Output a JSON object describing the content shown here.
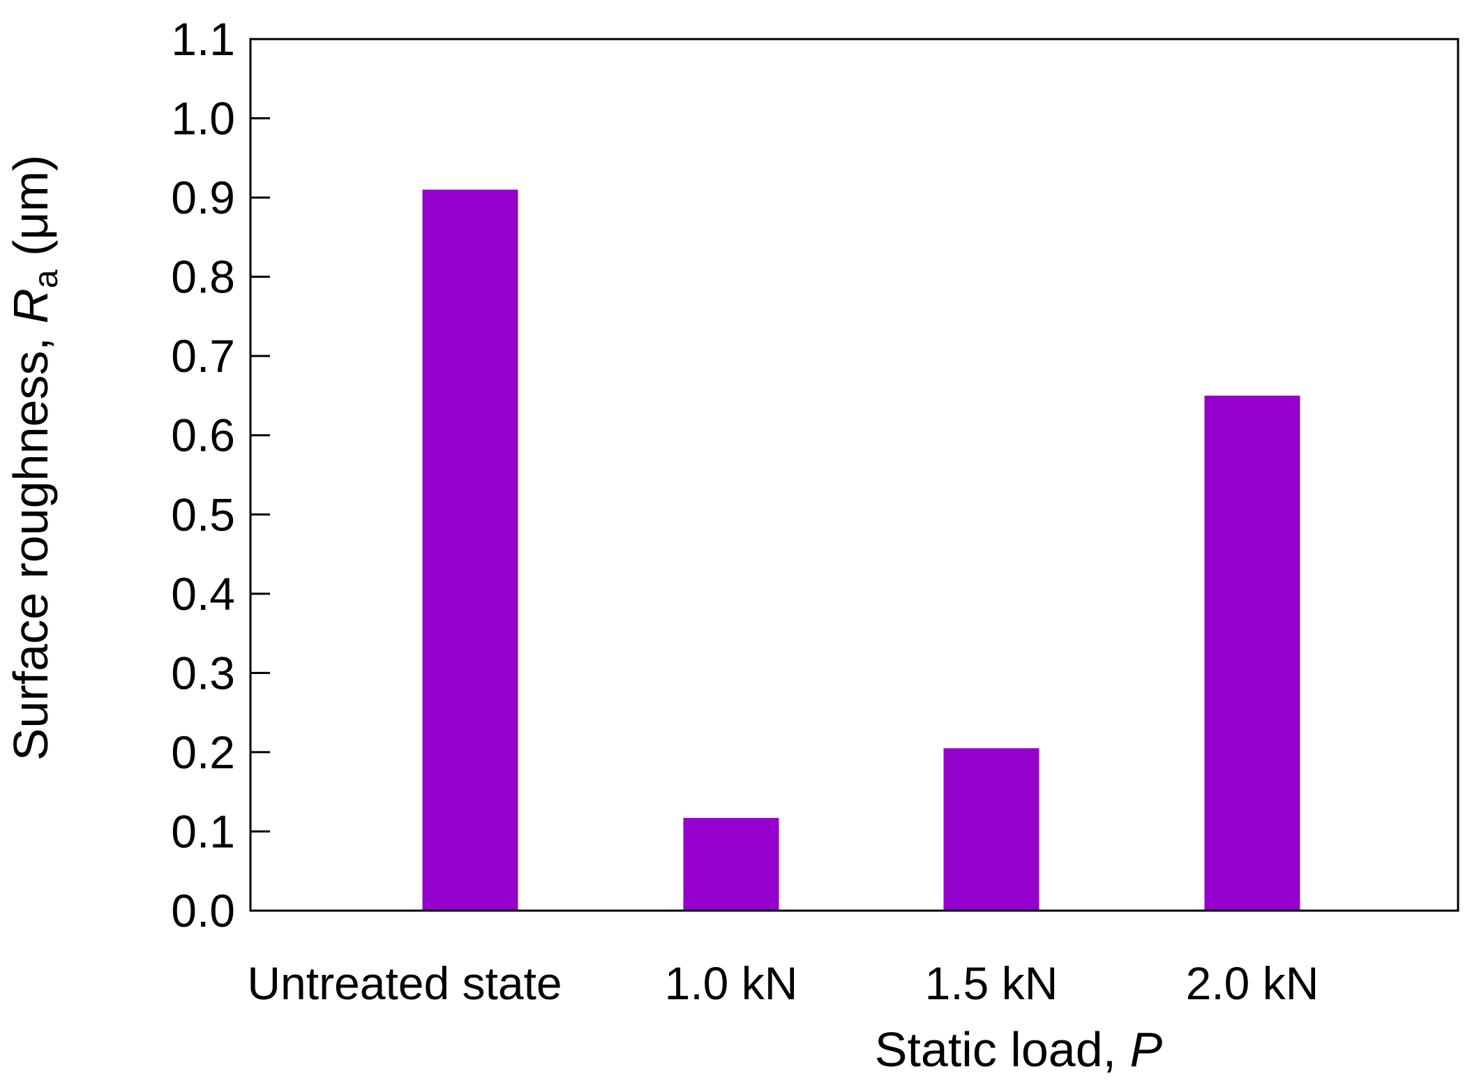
{
  "chart_data": {
    "type": "bar",
    "categories": [
      "Untreated state",
      "1.0 kN",
      "1.5 kN",
      "2.0 kN"
    ],
    "values": [
      0.91,
      0.117,
      0.205,
      0.65
    ],
    "bar_color": "#9400CC",
    "xlabel": {
      "main": "Static load, ",
      "variable": "P"
    },
    "ylabel": {
      "prefix": "Surface roughness, ",
      "variable": "R",
      "subscript": "a",
      "unit": " (μm)"
    },
    "ylim": [
      0.0,
      1.1
    ],
    "yticks": [
      "0.0",
      "0.1",
      "0.2",
      "0.3",
      "0.4",
      "0.5",
      "0.6",
      "0.7",
      "0.8",
      "0.9",
      "1.0",
      "1.1"
    ],
    "grid": false,
    "legend": "none"
  }
}
